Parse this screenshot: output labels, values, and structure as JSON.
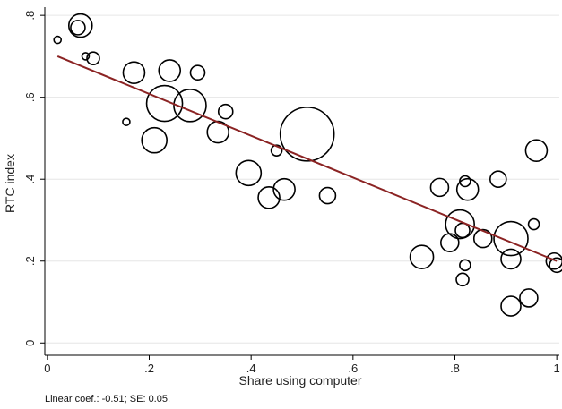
{
  "chart_data": {
    "type": "scatter",
    "xlabel": "Share using computer",
    "ylabel": "RTC index",
    "xlim": [
      -0.005,
      1.005
    ],
    "ylim": [
      -0.03,
      0.82
    ],
    "xticks": [
      0,
      0.2,
      0.4,
      0.6,
      0.8,
      1
    ],
    "xtick_labels": [
      "0",
      ".2",
      ".4",
      ".6",
      ".8",
      "1"
    ],
    "yticks": [
      0,
      0.2,
      0.4,
      0.6,
      0.8
    ],
    "ytick_labels": [
      "0",
      ".2",
      ".4",
      ".6",
      ".8"
    ],
    "grid": "horizontal",
    "marker": "hollow circle, size proportional to weight",
    "points": [
      {
        "x": 0.02,
        "y": 0.74,
        "size": 4
      },
      {
        "x": 0.065,
        "y": 0.775,
        "size": 13
      },
      {
        "x": 0.06,
        "y": 0.77,
        "size": 8
      },
      {
        "x": 0.075,
        "y": 0.7,
        "size": 4
      },
      {
        "x": 0.09,
        "y": 0.695,
        "size": 7
      },
      {
        "x": 0.17,
        "y": 0.66,
        "size": 12
      },
      {
        "x": 0.24,
        "y": 0.665,
        "size": 12
      },
      {
        "x": 0.295,
        "y": 0.66,
        "size": 8
      },
      {
        "x": 0.155,
        "y": 0.54,
        "size": 4
      },
      {
        "x": 0.23,
        "y": 0.585,
        "size": 20
      },
      {
        "x": 0.28,
        "y": 0.58,
        "size": 18
      },
      {
        "x": 0.35,
        "y": 0.565,
        "size": 8
      },
      {
        "x": 0.21,
        "y": 0.495,
        "size": 14
      },
      {
        "x": 0.335,
        "y": 0.515,
        "size": 12
      },
      {
        "x": 0.51,
        "y": 0.51,
        "size": 30
      },
      {
        "x": 0.45,
        "y": 0.47,
        "size": 6
      },
      {
        "x": 0.395,
        "y": 0.415,
        "size": 14
      },
      {
        "x": 0.465,
        "y": 0.375,
        "size": 12
      },
      {
        "x": 0.435,
        "y": 0.355,
        "size": 12
      },
      {
        "x": 0.55,
        "y": 0.36,
        "size": 9
      },
      {
        "x": 0.77,
        "y": 0.38,
        "size": 10
      },
      {
        "x": 0.82,
        "y": 0.395,
        "size": 6
      },
      {
        "x": 0.825,
        "y": 0.375,
        "size": 12
      },
      {
        "x": 0.885,
        "y": 0.4,
        "size": 9
      },
      {
        "x": 0.96,
        "y": 0.47,
        "size": 12
      },
      {
        "x": 0.81,
        "y": 0.29,
        "size": 16
      },
      {
        "x": 0.815,
        "y": 0.275,
        "size": 8
      },
      {
        "x": 0.79,
        "y": 0.245,
        "size": 10
      },
      {
        "x": 0.735,
        "y": 0.21,
        "size": 13
      },
      {
        "x": 0.855,
        "y": 0.255,
        "size": 10
      },
      {
        "x": 0.91,
        "y": 0.255,
        "size": 19
      },
      {
        "x": 0.955,
        "y": 0.29,
        "size": 6
      },
      {
        "x": 0.91,
        "y": 0.205,
        "size": 11
      },
      {
        "x": 0.82,
        "y": 0.19,
        "size": 6
      },
      {
        "x": 0.815,
        "y": 0.155,
        "size": 7
      },
      {
        "x": 0.995,
        "y": 0.2,
        "size": 9
      },
      {
        "x": 1.0,
        "y": 0.19,
        "size": 8
      },
      {
        "x": 0.945,
        "y": 0.11,
        "size": 10
      },
      {
        "x": 0.91,
        "y": 0.09,
        "size": 11
      }
    ],
    "fit_line": {
      "x": [
        0.02,
        1.0
      ],
      "y": [
        0.7,
        0.2
      ]
    },
    "colors": {
      "marker": "#000000",
      "fit": "#8b2323",
      "grid": "#e6e6e6",
      "axis": "#000000"
    }
  },
  "footnote": "Linear coef.: -0.51; SE: 0.05."
}
